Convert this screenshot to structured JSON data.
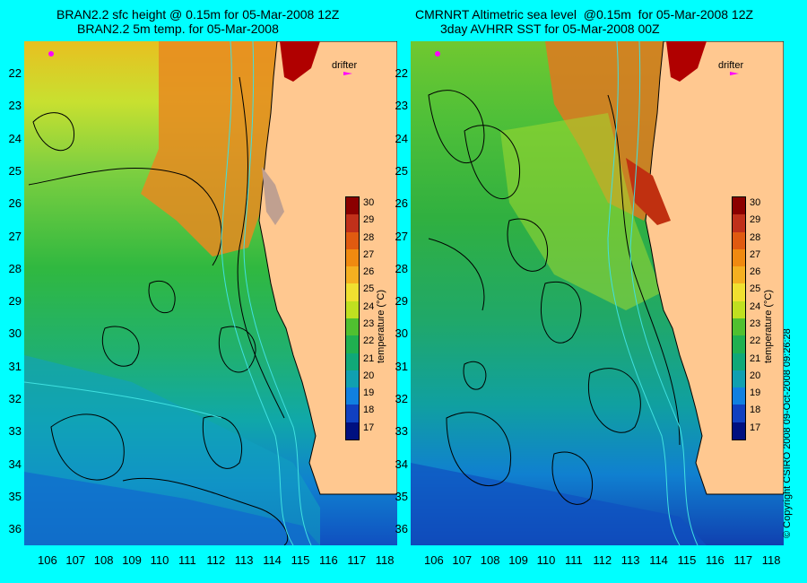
{
  "left_panel": {
    "title_line1": "BRAN2.2 sfc height @ 0.15m for 05-Mar-2008 12Z",
    "title_line2": "BRAN2.2 5m temp. for 05-Mar-2008",
    "drifter_label": "drifter"
  },
  "right_panel": {
    "title_line1": "CMRNRT Altimetric sea level  @0.15m  for 05-Mar-2008 12Z",
    "title_line2": "3day AVHRR SST for 05-Mar-2008 00Z",
    "drifter_label": "drifter"
  },
  "colorbar": {
    "title": "temperature (°C)",
    "ticks": [
      "30",
      "29",
      "28",
      "27",
      "26",
      "25",
      "24",
      "23",
      "22",
      "21",
      "20",
      "19",
      "18",
      "17"
    ],
    "colors": [
      "#8b0000",
      "#c0301a",
      "#e05a10",
      "#f08a10",
      "#f5b020",
      "#f0e030",
      "#c0e020",
      "#50c030",
      "#20b050",
      "#10a878",
      "#10a0b0",
      "#1080e0",
      "#1040c0",
      "#001080"
    ]
  },
  "x_axis": {
    "ticks": [
      "106",
      "107",
      "108",
      "109",
      "110",
      "111",
      "112",
      "113",
      "114",
      "115",
      "116",
      "117",
      "118"
    ]
  },
  "y_axis": {
    "ticks": [
      "22",
      "23",
      "24",
      "25",
      "26",
      "27",
      "28",
      "29",
      "30",
      "31",
      "32",
      "33",
      "34",
      "35",
      "36"
    ]
  },
  "copyright": "© Copyright CSIRO 2008   09-Oct-2008 09:26:28",
  "colors": {
    "background": "#00ffff",
    "land": "#ffc890",
    "contour": "#000000",
    "isobath": "#40e0e0",
    "drifter": "#ff00ff"
  }
}
